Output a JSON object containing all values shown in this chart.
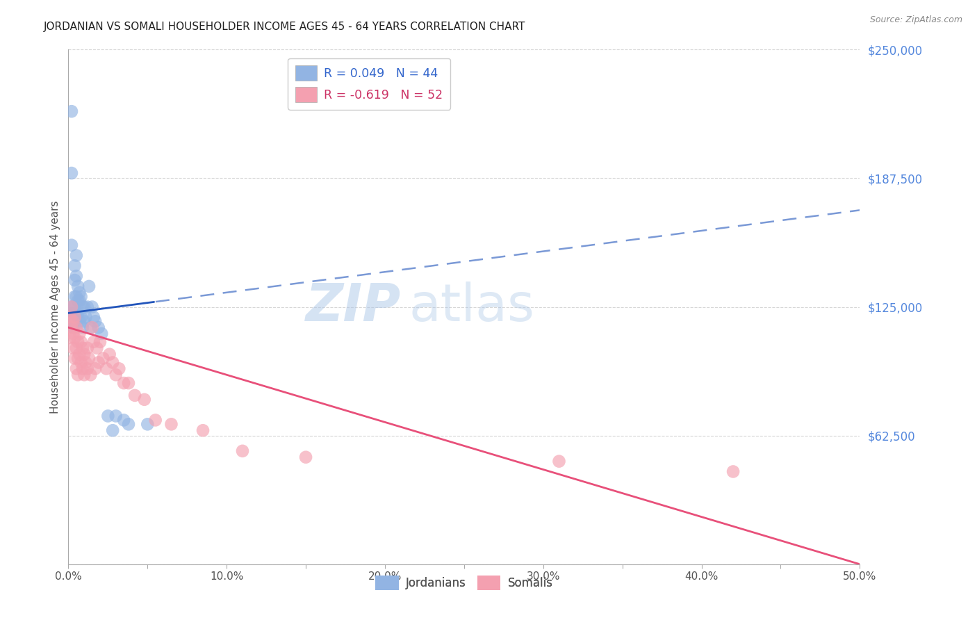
{
  "title": "JORDANIAN VS SOMALI HOUSEHOLDER INCOME AGES 45 - 64 YEARS CORRELATION CHART",
  "source": "Source: ZipAtlas.com",
  "ylabel": "Householder Income Ages 45 - 64 years",
  "xmin": 0.0,
  "xmax": 0.5,
  "ymin": 0,
  "ymax": 250000,
  "yticks": [
    0,
    62500,
    125000,
    187500,
    250000
  ],
  "ytick_labels": [
    "",
    "$62,500",
    "$125,000",
    "$187,500",
    "$250,000"
  ],
  "xtick_labels": [
    "0.0%",
    "",
    "10.0%",
    "",
    "20.0%",
    "",
    "30.0%",
    "",
    "40.0%",
    "",
    "50.0%"
  ],
  "xticks": [
    0.0,
    0.05,
    0.1,
    0.15,
    0.2,
    0.25,
    0.3,
    0.35,
    0.4,
    0.45,
    0.5
  ],
  "legend_labels": [
    "R = 0.049   N = 44",
    "R = -0.619   N = 52"
  ],
  "bottom_legend": [
    "Jordanians",
    "Somalis"
  ],
  "jordanian_color": "#92b4e3",
  "somali_color": "#f4a0b0",
  "jordanian_line_color": "#2255bb",
  "somali_line_color": "#e8507a",
  "background_color": "#ffffff",
  "watermark_zip": "ZIP",
  "watermark_atlas": "atlas",
  "jordanian_x": [
    0.001,
    0.001,
    0.002,
    0.002,
    0.002,
    0.003,
    0.003,
    0.003,
    0.003,
    0.004,
    0.004,
    0.004,
    0.004,
    0.005,
    0.005,
    0.005,
    0.005,
    0.006,
    0.006,
    0.006,
    0.007,
    0.007,
    0.007,
    0.008,
    0.008,
    0.009,
    0.009,
    0.01,
    0.01,
    0.011,
    0.012,
    0.013,
    0.014,
    0.015,
    0.016,
    0.017,
    0.019,
    0.021,
    0.025,
    0.028,
    0.03,
    0.035,
    0.038,
    0.05
  ],
  "jordanian_y": [
    125000,
    118000,
    220000,
    190000,
    155000,
    125000,
    122000,
    118000,
    115000,
    145000,
    138000,
    130000,
    125000,
    150000,
    140000,
    130000,
    122000,
    135000,
    128000,
    122000,
    132000,
    128000,
    118000,
    130000,
    120000,
    125000,
    115000,
    125000,
    118000,
    120000,
    125000,
    135000,
    115000,
    125000,
    120000,
    118000,
    115000,
    112000,
    72000,
    65000,
    72000,
    70000,
    68000,
    68000
  ],
  "somali_x": [
    0.001,
    0.001,
    0.002,
    0.002,
    0.003,
    0.003,
    0.003,
    0.004,
    0.004,
    0.004,
    0.005,
    0.005,
    0.005,
    0.006,
    0.006,
    0.006,
    0.007,
    0.007,
    0.008,
    0.008,
    0.009,
    0.009,
    0.01,
    0.01,
    0.011,
    0.012,
    0.012,
    0.013,
    0.014,
    0.015,
    0.016,
    0.017,
    0.018,
    0.019,
    0.02,
    0.022,
    0.024,
    0.026,
    0.028,
    0.03,
    0.032,
    0.035,
    0.038,
    0.042,
    0.048,
    0.055,
    0.065,
    0.085,
    0.11,
    0.15,
    0.31,
    0.42
  ],
  "somali_y": [
    120000,
    110000,
    125000,
    115000,
    118000,
    112000,
    105000,
    120000,
    110000,
    100000,
    115000,
    105000,
    95000,
    108000,
    100000,
    92000,
    112000,
    102000,
    108000,
    98000,
    105000,
    95000,
    102000,
    92000,
    98000,
    105000,
    95000,
    100000,
    92000,
    115000,
    108000,
    95000,
    105000,
    98000,
    108000,
    100000,
    95000,
    102000,
    98000,
    92000,
    95000,
    88000,
    88000,
    82000,
    80000,
    70000,
    68000,
    65000,
    55000,
    52000,
    50000,
    45000
  ]
}
